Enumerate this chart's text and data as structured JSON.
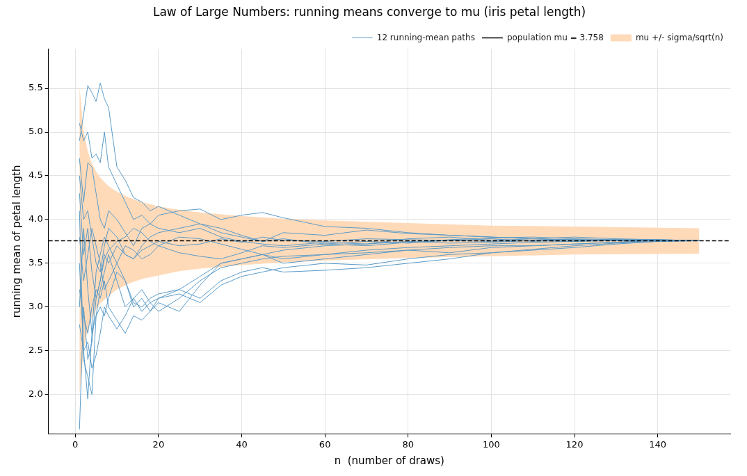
{
  "chart_data": {
    "type": "line",
    "title": "Law of Large Numbers: running means converge to mu (iris petal length)",
    "xlabel": "n  (number of draws)",
    "ylabel": "running mean of petal length",
    "x": [
      1,
      2,
      3,
      4,
      5,
      6,
      7,
      8,
      10,
      12,
      14,
      16,
      18,
      20,
      25,
      30,
      35,
      40,
      45,
      50,
      60,
      70,
      80,
      90,
      100,
      110,
      120,
      130,
      140,
      150
    ],
    "xlim": [
      -6.45,
      157.45
    ],
    "ylim": [
      1.55,
      5.95
    ],
    "xticks": [
      0,
      20,
      40,
      60,
      80,
      100,
      120,
      140
    ],
    "yticks": [
      {
        "value": 2,
        "label": "2.0"
      },
      2.5,
      {
        "value": 3,
        "label": "3.0"
      },
      3.5,
      {
        "value": 4,
        "label": "4.0"
      },
      4.5,
      {
        "value": 5,
        "label": "5.0"
      },
      5.5
    ],
    "grid": true,
    "legend": "top right",
    "series": [
      {
        "name": "12 running-mean paths",
        "color": "#5b9bc8",
        "values": [
          4.9,
          5.2,
          5.53,
          5.45,
          5.35,
          5.56,
          5.38,
          5.28,
          4.6,
          4.45,
          4.25,
          4.2,
          4.1,
          4.15,
          4.05,
          3.95,
          3.9,
          3.82,
          3.75,
          3.78,
          3.72,
          3.7,
          3.74,
          3.76,
          3.78,
          3.75,
          3.77,
          3.76,
          3.77,
          3.758
        ]
      },
      {
        "color": "#5b9bc8",
        "values": [
          5.1,
          4.9,
          5.0,
          4.7,
          4.75,
          4.65,
          5.0,
          4.6,
          4.4,
          4.2,
          4.0,
          4.05,
          3.95,
          3.9,
          3.85,
          3.9,
          3.8,
          3.75,
          3.72,
          3.7,
          3.74,
          3.72,
          3.75,
          3.73,
          3.74,
          3.76,
          3.75,
          3.77,
          3.76,
          3.758
        ]
      },
      {
        "color": "#5b9bc8",
        "values": [
          1.6,
          3.0,
          2.4,
          2.6,
          3.1,
          3.3,
          3.6,
          3.5,
          3.7,
          3.6,
          3.55,
          3.65,
          3.7,
          3.75,
          3.7,
          3.72,
          3.78,
          3.74,
          3.8,
          3.76,
          3.75,
          3.78,
          3.77,
          3.76,
          3.75,
          3.76,
          3.77,
          3.76,
          3.76,
          3.758
        ]
      },
      {
        "color": "#5b9bc8",
        "values": [
          3.5,
          2.5,
          1.95,
          2.7,
          2.9,
          3.0,
          2.9,
          3.1,
          3.4,
          3.3,
          3.05,
          3.0,
          3.1,
          3.15,
          3.2,
          3.1,
          3.3,
          3.4,
          3.45,
          3.4,
          3.42,
          3.45,
          3.5,
          3.55,
          3.62,
          3.65,
          3.68,
          3.72,
          3.75,
          3.758
        ]
      },
      {
        "color": "#5b9bc8",
        "values": [
          4.1,
          2.4,
          2.2,
          2.0,
          2.9,
          3.2,
          3.4,
          3.6,
          3.3,
          3.0,
          3.1,
          2.95,
          3.05,
          3.1,
          3.2,
          3.35,
          3.5,
          3.55,
          3.6,
          3.5,
          3.55,
          3.6,
          3.65,
          3.62,
          3.68,
          3.7,
          3.72,
          3.74,
          3.76,
          3.758
        ]
      },
      {
        "color": "#5b9bc8",
        "values": [
          4.7,
          4.2,
          4.65,
          4.6,
          4.3,
          4.0,
          3.9,
          4.1,
          4.0,
          3.85,
          3.7,
          3.9,
          3.95,
          4.05,
          4.1,
          4.12,
          4.0,
          4.05,
          4.08,
          4.02,
          3.92,
          3.9,
          3.85,
          3.82,
          3.8,
          3.78,
          3.8,
          3.78,
          3.77,
          3.758
        ]
      },
      {
        "color": "#5b9bc8",
        "values": [
          3.0,
          3.9,
          3.2,
          2.7,
          3.4,
          3.6,
          3.8,
          3.7,
          3.5,
          3.3,
          3.0,
          3.1,
          2.95,
          3.05,
          2.95,
          3.25,
          3.5,
          3.55,
          3.6,
          3.55,
          3.6,
          3.65,
          3.68,
          3.7,
          3.72,
          3.74,
          3.75,
          3.76,
          3.76,
          3.758
        ]
      },
      {
        "color": "#5b9bc8",
        "values": [
          4.5,
          4.0,
          4.1,
          3.8,
          3.5,
          3.4,
          3.7,
          3.9,
          3.8,
          3.6,
          3.55,
          3.7,
          3.8,
          3.85,
          3.9,
          3.95,
          3.85,
          3.8,
          3.75,
          3.85,
          3.82,
          3.88,
          3.84,
          3.82,
          3.8,
          3.78,
          3.76,
          3.77,
          3.76,
          3.758
        ]
      },
      {
        "color": "#5b9bc8",
        "values": [
          2.8,
          2.5,
          2.6,
          2.3,
          2.45,
          2.7,
          3.0,
          2.9,
          2.75,
          2.9,
          3.1,
          3.2,
          3.05,
          2.95,
          3.1,
          3.3,
          3.45,
          3.5,
          3.55,
          3.58,
          3.6,
          3.62,
          3.65,
          3.68,
          3.7,
          3.7,
          3.72,
          3.74,
          3.76,
          3.758
        ]
      },
      {
        "color": "#5b9bc8",
        "values": [
          3.8,
          3.3,
          3.6,
          3.9,
          3.7,
          3.5,
          3.2,
          3.3,
          3.5,
          3.7,
          3.65,
          3.55,
          3.6,
          3.7,
          3.8,
          3.78,
          3.72,
          3.66,
          3.6,
          3.65,
          3.7,
          3.72,
          3.78,
          3.8,
          3.76,
          3.78,
          3.77,
          3.76,
          3.76,
          3.758
        ]
      },
      {
        "color": "#5b9bc8",
        "values": [
          4.3,
          3.6,
          3.9,
          3.4,
          3.1,
          3.3,
          3.55,
          3.65,
          3.75,
          3.8,
          3.9,
          3.85,
          3.75,
          3.7,
          3.62,
          3.58,
          3.55,
          3.62,
          3.7,
          3.68,
          3.72,
          3.75,
          3.73,
          3.77,
          3.79,
          3.8,
          3.78,
          3.77,
          3.77,
          3.758
        ]
      },
      {
        "color": "#5b9bc8",
        "values": [
          3.2,
          2.9,
          2.7,
          3.0,
          3.2,
          3.1,
          3.3,
          3.0,
          2.85,
          2.7,
          2.9,
          2.85,
          2.95,
          3.1,
          3.15,
          3.05,
          3.25,
          3.35,
          3.4,
          3.45,
          3.5,
          3.48,
          3.55,
          3.6,
          3.62,
          3.66,
          3.7,
          3.73,
          3.75,
          3.758
        ]
      },
      {
        "name": "mu +/- sigma/sqrt(n)",
        "color": "#ffdab9",
        "x": [
          1,
          2,
          3,
          4,
          5,
          6,
          8,
          10,
          13,
          16,
          20,
          25,
          30,
          40,
          50,
          60,
          80,
          100,
          120,
          150
        ],
        "values": [
          null,
          null,
          null,
          null,
          null,
          null,
          null,
          null,
          null,
          null,
          null,
          null,
          null,
          null,
          null,
          null,
          null,
          null,
          null,
          null
        ],
        "upper": [
          5.52,
          5.01,
          4.78,
          4.64,
          4.55,
          4.48,
          4.38,
          4.32,
          4.25,
          4.2,
          4.15,
          4.11,
          4.08,
          4.04,
          4.01,
          3.99,
          3.96,
          3.93,
          3.92,
          3.9
        ],
        "lower": [
          1.99,
          2.51,
          2.74,
          2.88,
          2.97,
          3.04,
          3.13,
          3.2,
          3.27,
          3.32,
          3.36,
          3.41,
          3.44,
          3.48,
          3.51,
          3.53,
          3.56,
          3.58,
          3.6,
          3.61
        ]
      }
    ],
    "ref_lines": [
      {
        "axis": "y",
        "value": 3.758,
        "label": "population mu = 3.758",
        "color": "#000000",
        "line_style": "dashed"
      }
    ]
  }
}
